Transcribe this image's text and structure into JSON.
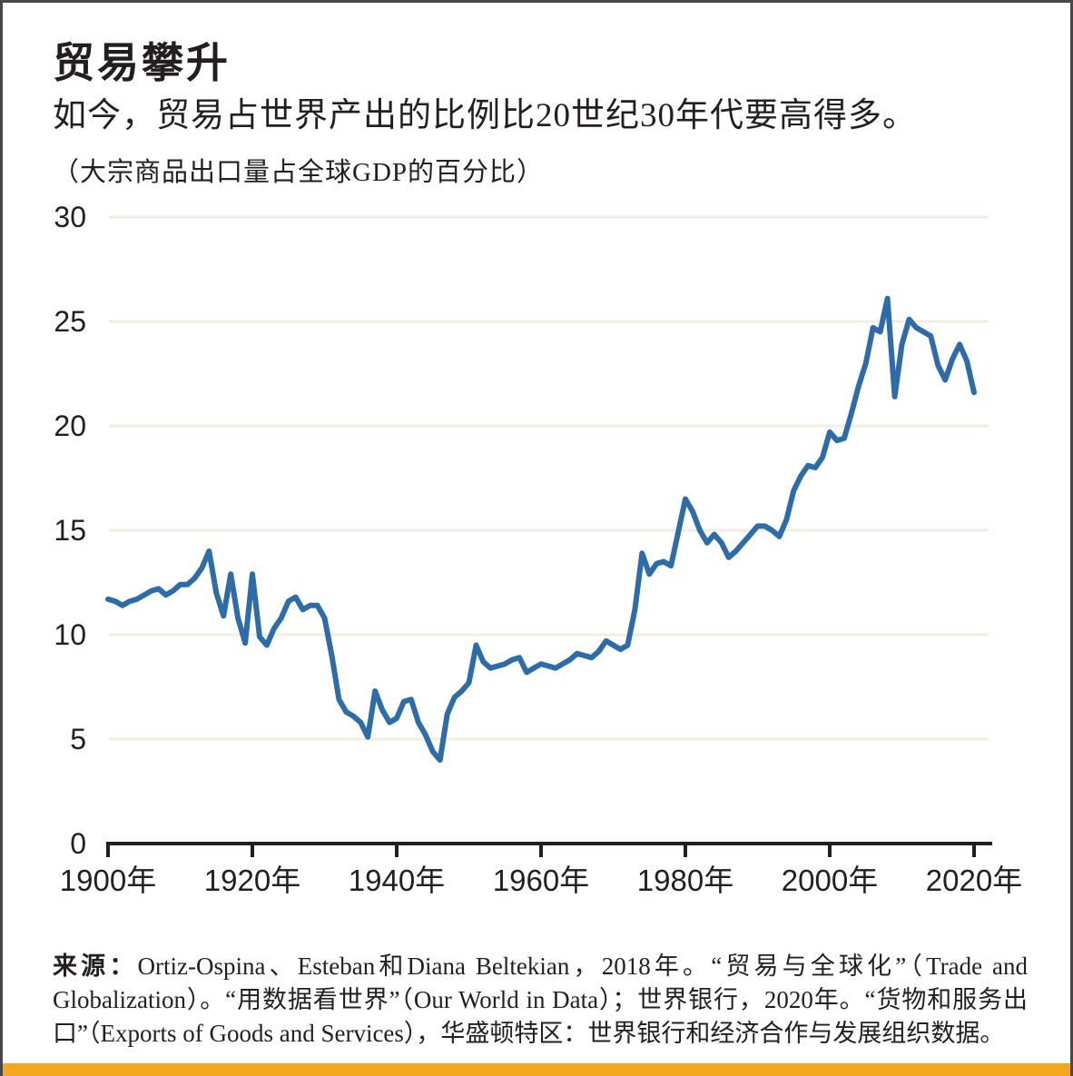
{
  "header": {
    "title": "贸易攀升",
    "subtitle": "如今，贸易占世界产出的比例比20世纪30年代要高得多。",
    "axis_note": "（大宗商品出口量占全球GDP的百分比）"
  },
  "source": {
    "bold_label": "来源：",
    "text": "Ortiz-Ospina、Esteban和Diana Beltekian，2018年。“贸易与全球化”（Trade and Globalization）。“用数据看世界”（Our World in Data）；世界银行，2020年。“货物和服务出口”（Exports of Goods and Services），华盛顿特区：世界银行和经济合作与发展组织数据。"
  },
  "colors": {
    "line": "#2b6ca9",
    "grid": "#f1eee1",
    "axis": "#231f20",
    "text": "#231f20",
    "accent_bar": "#f5a81f",
    "border": "#48484a"
  },
  "chart_data": {
    "type": "line",
    "title": "贸易攀升",
    "subtitle": "如今，贸易占世界产出的比例比20世纪30年代要高得多。",
    "ylabel": "（大宗商品出口量占全球GDP的百分比）",
    "xlim": [
      1900,
      2020
    ],
    "ylim": [
      0,
      30
    ],
    "grid": "horizontal-only",
    "legend": "none",
    "x_tick_years": [
      1900,
      1920,
      1940,
      1960,
      1980,
      2000,
      2020
    ],
    "x_tick_labels": [
      "1900年",
      "1920年",
      "1940年",
      "1960年",
      "1980年",
      "2000年",
      "2020年"
    ],
    "y_ticks": [
      0,
      5,
      10,
      15,
      20,
      25,
      30
    ],
    "x_start": 1900,
    "x_step": 1,
    "series": [
      {
        "name": "大宗商品出口量占全球GDP的百分比",
        "values": [
          11.7,
          11.6,
          11.4,
          11.6,
          11.7,
          11.9,
          12.1,
          12.2,
          11.9,
          12.1,
          12.4,
          12.4,
          12.7,
          13.2,
          14.0,
          12.0,
          10.9,
          12.9,
          10.8,
          9.6,
          12.9,
          9.9,
          9.5,
          10.3,
          10.8,
          11.6,
          11.8,
          11.2,
          11.4,
          11.4,
          10.8,
          9.0,
          6.9,
          6.3,
          6.1,
          5.8,
          5.1,
          7.3,
          6.4,
          5.8,
          6.0,
          6.8,
          6.9,
          5.8,
          5.2,
          4.4,
          4.0,
          6.2,
          7.0,
          7.3,
          7.7,
          9.5,
          8.7,
          8.4,
          8.5,
          8.6,
          8.8,
          8.9,
          8.2,
          8.4,
          8.6,
          8.5,
          8.4,
          8.6,
          8.8,
          9.1,
          9.0,
          8.9,
          9.2,
          9.7,
          9.5,
          9.3,
          9.5,
          11.2,
          13.9,
          12.9,
          13.4,
          13.5,
          13.3,
          14.9,
          16.5,
          15.9,
          15.0,
          14.4,
          14.8,
          14.4,
          13.7,
          14.0,
          14.4,
          14.8,
          15.2,
          15.2,
          15.0,
          14.7,
          15.5,
          16.9,
          17.6,
          18.1,
          18.0,
          18.5,
          19.7,
          19.3,
          19.4,
          20.6,
          21.9,
          23.0,
          24.7,
          24.5,
          26.1,
          21.4,
          23.9,
          25.1,
          24.7,
          24.5,
          24.3,
          22.9,
          22.2,
          23.2,
          23.9,
          23.1,
          21.6
        ]
      }
    ]
  }
}
